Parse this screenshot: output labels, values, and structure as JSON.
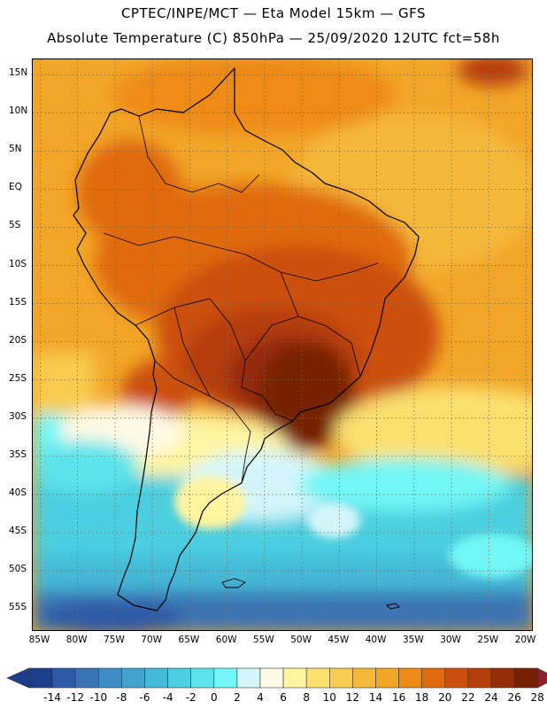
{
  "header": {
    "line1": "CPTEC/INPE/MCT —  Eta Model 15km — GFS",
    "line2": "Absolute Temperature (C) 850hPa — 25/09/2020 12UTC fct=58h"
  },
  "map": {
    "region": "South America",
    "lon_range": [
      -86,
      -19
    ],
    "lat_range": [
      -58,
      17
    ],
    "lat_ticks": [
      {
        "value": 15,
        "label": "15N"
      },
      {
        "value": 10,
        "label": "10N"
      },
      {
        "value": 5,
        "label": "5N"
      },
      {
        "value": 0,
        "label": "EQ"
      },
      {
        "value": -5,
        "label": "5S"
      },
      {
        "value": -10,
        "label": "10S"
      },
      {
        "value": -15,
        "label": "15S"
      },
      {
        "value": -20,
        "label": "20S"
      },
      {
        "value": -25,
        "label": "25S"
      },
      {
        "value": -30,
        "label": "30S"
      },
      {
        "value": -35,
        "label": "35S"
      },
      {
        "value": -40,
        "label": "40S"
      },
      {
        "value": -45,
        "label": "45S"
      },
      {
        "value": -50,
        "label": "50S"
      },
      {
        "value": -55,
        "label": "55S"
      }
    ],
    "lon_ticks": [
      {
        "value": -85,
        "label": "85W"
      },
      {
        "value": -80,
        "label": "80W"
      },
      {
        "value": -75,
        "label": "75W"
      },
      {
        "value": -70,
        "label": "70W"
      },
      {
        "value": -65,
        "label": "65W"
      },
      {
        "value": -60,
        "label": "60W"
      },
      {
        "value": -55,
        "label": "55W"
      },
      {
        "value": -50,
        "label": "50W"
      },
      {
        "value": -45,
        "label": "45W"
      },
      {
        "value": -40,
        "label": "40W"
      },
      {
        "value": -35,
        "label": "35W"
      },
      {
        "value": -30,
        "label": "30W"
      },
      {
        "value": -25,
        "label": "25W"
      },
      {
        "value": -20,
        "label": "20W"
      }
    ],
    "grid": "dotted",
    "colorbar": {
      "labels": [
        "-14",
        "-12",
        "-10",
        "-8",
        "-6",
        "-4",
        "-2",
        "0",
        "2",
        "4",
        "6",
        "8",
        "10",
        "12",
        "14",
        "16",
        "18",
        "20",
        "22",
        "24",
        "26",
        "28"
      ],
      "colors": [
        "#1c3c8c",
        "#2d5aa6",
        "#3a74b4",
        "#3f8cc4",
        "#44a4d0",
        "#45bad8",
        "#4ccfe0",
        "#5ce4ec",
        "#72f6f6",
        "#d4f6fa",
        "#fffae6",
        "#fff4a0",
        "#fbe070",
        "#f7cc50",
        "#f4b83a",
        "#f2a628",
        "#ee8a18",
        "#e06a10",
        "#cc500c",
        "#b63e0a",
        "#962c08",
        "#762006",
        "#8c1f2a"
      ]
    }
  }
}
